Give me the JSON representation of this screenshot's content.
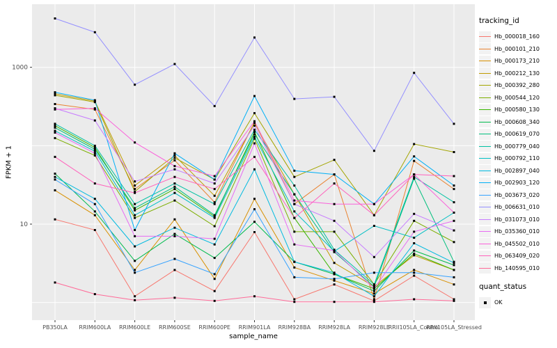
{
  "figure": {
    "background": "#FFFFFF",
    "panel_background": "#EBEBEB",
    "gridline_color": "#FFFFFF",
    "point_color": "#000000",
    "tick_label_color": "#4D4D4D",
    "tick_mark_color": "#333333"
  },
  "chart_data": {
    "type": "line",
    "xlabel": "sample_name",
    "ylabel": "FPKM + 1",
    "y_scale": "log10",
    "ylim": [
      0.63,
      6400
    ],
    "grid": "on",
    "y_ticks": [
      {
        "label": "10",
        "value": 10
      },
      {
        "label": "1000",
        "value": 1000
      }
    ],
    "y_gridlines": [
      1,
      10,
      100,
      1000
    ],
    "categories": [
      "PB350LA",
      "RRIM600LA",
      "RRIM600LE",
      "RRIM600SE",
      "RRIM600PE",
      "RRIM901LA",
      "RRIM928BA",
      "RRIM928LA",
      "RRIM928LE",
      "RRII105LA_Control",
      "RRII105LA_Stressed"
    ],
    "legend": {
      "title": "tracking_id",
      "position": "right"
    },
    "quant_legend": {
      "title": "quant_status",
      "items": [
        {
          "label": "OK",
          "marker": "square",
          "color": "#000000"
        }
      ]
    },
    "point_marker": "square",
    "series": [
      {
        "name": "Hb_000018_160",
        "color": "#F8766D",
        "values": [
          11.5,
          8.4,
          1.2,
          2.6,
          1.4,
          7.9,
          1.1,
          1.7,
          1.05,
          2.2,
          1.1
        ]
      },
      {
        "name": "Hb_000101_210",
        "color": "#EA8331",
        "values": [
          340,
          290,
          28,
          65,
          19,
          200,
          18,
          43,
          1.1,
          64,
          28
        ]
      },
      {
        "name": "Hb_000173_210",
        "color": "#D89000",
        "values": [
          27,
          13,
          2.6,
          11.5,
          2.0,
          21,
          2.8,
          1.9,
          1.3,
          2.6,
          1.7
        ]
      },
      {
        "name": "Hb_000212_130",
        "color": "#C09B00",
        "values": [
          460,
          370,
          31,
          75,
          23,
          195,
          24,
          3.2,
          1.6,
          4.0,
          2.6
        ]
      },
      {
        "name": "Hb_000392_280",
        "color": "#A3A500",
        "values": [
          440,
          360,
          26,
          70,
          37,
          260,
          40,
          66,
          13,
          105,
          83
        ]
      },
      {
        "name": "Hb_000544_120",
        "color": "#7CAE00",
        "values": [
          125,
          75,
          12,
          20,
          9.4,
          123,
          8,
          8,
          1.7,
          11,
          5.9
        ]
      },
      {
        "name": "Hb_000580_130",
        "color": "#39B600",
        "values": [
          180,
          95,
          15,
          28,
          12.5,
          150,
          12,
          2.3,
          1.5,
          4.2,
          2.6
        ]
      },
      {
        "name": "Hb_000608_340",
        "color": "#00BB4E",
        "values": [
          44,
          14.5,
          3.4,
          7.5,
          3.7,
          10.7,
          3.3,
          2.3,
          1.4,
          4.6,
          3.0
        ]
      },
      {
        "name": "Hb_000619_070",
        "color": "#00BF7D",
        "values": [
          170,
          90,
          16,
          30,
          13,
          140,
          24,
          4.4,
          1.6,
          38,
          3.3
        ]
      },
      {
        "name": "Hb_000779_040",
        "color": "#00C1A3",
        "values": [
          190,
          100,
          18,
          33,
          18,
          160,
          31,
          4.7,
          1.7,
          40,
          19
        ]
      },
      {
        "name": "Hb_000792_110",
        "color": "#00BFC4",
        "values": [
          155,
          85,
          13,
          25,
          12,
          130,
          14.5,
          4.5,
          9.5,
          6.7,
          14
        ]
      },
      {
        "name": "Hb_002897_040",
        "color": "#00BAE0",
        "values": [
          40,
          21,
          5.2,
          9,
          5.5,
          50,
          3.3,
          2.4,
          1.2,
          5.7,
          3.2
        ]
      },
      {
        "name": "Hb_002903_120",
        "color": "#00B0F6",
        "values": [
          480,
          380,
          8.4,
          80,
          37,
          430,
          48,
          43,
          18,
          73,
          31
        ]
      },
      {
        "name": "Hb_003673_020",
        "color": "#35A2FF",
        "values": [
          37,
          18,
          2.4,
          3.6,
          2.3,
          15.5,
          2.1,
          2.0,
          2.4,
          2.4,
          2.1
        ]
      },
      {
        "name": "Hb_006631_010",
        "color": "#9590FF",
        "values": [
          4200,
          2800,
          600,
          1100,
          320,
          2400,
          395,
          420,
          86,
          850,
          190
        ]
      },
      {
        "name": "Hb_031073_010",
        "color": "#C77CFF",
        "values": [
          300,
          210,
          35,
          50,
          33,
          180,
          18,
          11,
          3.8,
          13.5,
          8.3
        ]
      },
      {
        "name": "Hb_035360_010",
        "color": "#E76BF3",
        "values": [
          147,
          80,
          7,
          7,
          6.5,
          107,
          5.5,
          4.6,
          1.5,
          8,
          11
        ]
      },
      {
        "name": "Hb_045502_010",
        "color": "#FA62DB",
        "values": [
          290,
          300,
          110,
          55,
          41,
          205,
          20,
          18,
          18,
          43,
          14
        ]
      },
      {
        "name": "Hb_063409_020",
        "color": "#FF62BC",
        "values": [
          72,
          33,
          25,
          40,
          28,
          72,
          12,
          33,
          13,
          43,
          41
        ]
      },
      {
        "name": "Hb_140595_010",
        "color": "#FF6A98",
        "values": [
          1.8,
          1.28,
          1.07,
          1.15,
          1.05,
          1.2,
          1.02,
          1.02,
          1.02,
          1.1,
          1.05
        ]
      }
    ]
  }
}
